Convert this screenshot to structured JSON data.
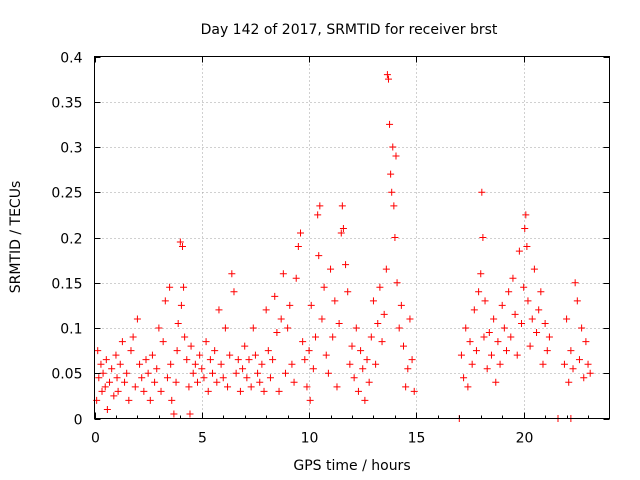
{
  "chart_data": {
    "type": "scatter",
    "title": "Day 142 of 2017, SRMTID for receiver brst",
    "xlabel": "GPS time / hours",
    "ylabel": "SRMTID / TECUs",
    "xlim": [
      0,
      24
    ],
    "ylim": [
      0,
      0.4
    ],
    "x_ticks": [
      0,
      5,
      10,
      15,
      20
    ],
    "x_tick_labels": [
      "0",
      "5",
      "10",
      "15",
      "20"
    ],
    "y_ticks": [
      0,
      0.05,
      0.1,
      0.15,
      0.2,
      0.25,
      0.3,
      0.35,
      0.4
    ],
    "y_tick_labels": [
      "0",
      "0.05",
      "0.1",
      "0.15",
      "0.2",
      "0.25",
      "0.3",
      "0.35",
      "0.4"
    ],
    "grid": true,
    "marker": "+",
    "marker_color": "#ff0000",
    "series": [
      {
        "name": "SRMTID",
        "points": [
          [
            0.1,
            0.02
          ],
          [
            0.15,
            0.075
          ],
          [
            0.2,
            0.045
          ],
          [
            0.3,
            0.06
          ],
          [
            0.35,
            0.03
          ],
          [
            0.4,
            0.05
          ],
          [
            0.5,
            0.035
          ],
          [
            0.55,
            0.065
          ],
          [
            0.6,
            0.01
          ],
          [
            0.7,
            0.04
          ],
          [
            0.8,
            0.055
          ],
          [
            0.9,
            0.025
          ],
          [
            1.0,
            0.07
          ],
          [
            1.05,
            0.045
          ],
          [
            1.1,
            0.03
          ],
          [
            1.2,
            0.06
          ],
          [
            1.3,
            0.085
          ],
          [
            1.4,
            0.04
          ],
          [
            1.5,
            0.05
          ],
          [
            1.6,
            0.02
          ],
          [
            1.7,
            0.075
          ],
          [
            1.8,
            0.09
          ],
          [
            1.9,
            0.035
          ],
          [
            2.0,
            0.11
          ],
          [
            2.1,
            0.06
          ],
          [
            2.2,
            0.045
          ],
          [
            2.3,
            0.03
          ],
          [
            2.4,
            0.065
          ],
          [
            2.5,
            0.05
          ],
          [
            2.6,
            0.02
          ],
          [
            2.7,
            0.07
          ],
          [
            2.8,
            0.04
          ],
          [
            2.9,
            0.055
          ],
          [
            3.0,
            0.1
          ],
          [
            3.1,
            0.03
          ],
          [
            3.2,
            0.085
          ],
          [
            3.3,
            0.13
          ],
          [
            3.4,
            0.045
          ],
          [
            3.5,
            0.145
          ],
          [
            3.55,
            0.06
          ],
          [
            3.6,
            0.02
          ],
          [
            3.7,
            0.005
          ],
          [
            3.8,
            0.04
          ],
          [
            3.85,
            0.075
          ],
          [
            3.9,
            0.105
          ],
          [
            4.0,
            0.195
          ],
          [
            4.05,
            0.125
          ],
          [
            4.1,
            0.19
          ],
          [
            4.15,
            0.145
          ],
          [
            4.2,
            0.09
          ],
          [
            4.3,
            0.065
          ],
          [
            4.4,
            0.035
          ],
          [
            4.45,
            0.005
          ],
          [
            4.5,
            0.08
          ],
          [
            4.6,
            0.05
          ],
          [
            4.7,
            0.06
          ],
          [
            4.8,
            0.04
          ],
          [
            4.9,
            0.07
          ],
          [
            5.0,
            0.055
          ],
          [
            5.1,
            0.045
          ],
          [
            5.2,
            0.085
          ],
          [
            5.3,
            0.03
          ],
          [
            5.4,
            0.065
          ],
          [
            5.5,
            0.05
          ],
          [
            5.6,
            0.075
          ],
          [
            5.7,
            0.04
          ],
          [
            5.8,
            0.12
          ],
          [
            5.9,
            0.06
          ],
          [
            6.0,
            0.045
          ],
          [
            6.1,
            0.1
          ],
          [
            6.2,
            0.035
          ],
          [
            6.3,
            0.07
          ],
          [
            6.4,
            0.16
          ],
          [
            6.5,
            0.14
          ],
          [
            6.6,
            0.05
          ],
          [
            6.7,
            0.065
          ],
          [
            6.8,
            0.03
          ],
          [
            6.9,
            0.055
          ],
          [
            7.0,
            0.08
          ],
          [
            7.1,
            0.045
          ],
          [
            7.2,
            0.065
          ],
          [
            7.3,
            0.035
          ],
          [
            7.4,
            0.1
          ],
          [
            7.5,
            0.07
          ],
          [
            7.6,
            0.05
          ],
          [
            7.7,
            0.04
          ],
          [
            7.8,
            0.06
          ],
          [
            7.9,
            0.03
          ],
          [
            8.0,
            0.12
          ],
          [
            8.1,
            0.075
          ],
          [
            8.2,
            0.045
          ],
          [
            8.3,
            0.065
          ],
          [
            8.4,
            0.135
          ],
          [
            8.5,
            0.095
          ],
          [
            8.6,
            0.03
          ],
          [
            8.7,
            0.11
          ],
          [
            8.8,
            0.16
          ],
          [
            8.9,
            0.05
          ],
          [
            9.0,
            0.1
          ],
          [
            9.1,
            0.125
          ],
          [
            9.2,
            0.06
          ],
          [
            9.3,
            0.04
          ],
          [
            9.4,
            0.155
          ],
          [
            9.5,
            0.19
          ],
          [
            9.6,
            0.205
          ],
          [
            9.7,
            0.085
          ],
          [
            9.8,
            0.065
          ],
          [
            9.9,
            0.035
          ],
          [
            10.0,
            0.075
          ],
          [
            10.05,
            0.02
          ],
          [
            10.1,
            0.125
          ],
          [
            10.2,
            0.055
          ],
          [
            10.3,
            0.09
          ],
          [
            10.4,
            0.225
          ],
          [
            10.45,
            0.18
          ],
          [
            10.5,
            0.235
          ],
          [
            10.6,
            0.11
          ],
          [
            10.7,
            0.145
          ],
          [
            10.8,
            0.07
          ],
          [
            10.9,
            0.05
          ],
          [
            11.0,
            0.165
          ],
          [
            11.1,
            0.09
          ],
          [
            11.2,
            0.13
          ],
          [
            11.3,
            0.035
          ],
          [
            11.4,
            0.105
          ],
          [
            11.5,
            0.205
          ],
          [
            11.55,
            0.235
          ],
          [
            11.6,
            0.21
          ],
          [
            11.7,
            0.17
          ],
          [
            11.8,
            0.14
          ],
          [
            11.9,
            0.06
          ],
          [
            12.0,
            0.08
          ],
          [
            12.1,
            0.045
          ],
          [
            12.2,
            0.1
          ],
          [
            12.3,
            0.03
          ],
          [
            12.4,
            0.075
          ],
          [
            12.5,
            0.055
          ],
          [
            12.6,
            0.02
          ],
          [
            12.7,
            0.065
          ],
          [
            12.8,
            0.04
          ],
          [
            12.9,
            0.09
          ],
          [
            13.0,
            0.13
          ],
          [
            13.1,
            0.06
          ],
          [
            13.2,
            0.105
          ],
          [
            13.3,
            0.145
          ],
          [
            13.4,
            0.085
          ],
          [
            13.5,
            0.115
          ],
          [
            13.6,
            0.165
          ],
          [
            13.65,
            0.38
          ],
          [
            13.7,
            0.375
          ],
          [
            13.75,
            0.325
          ],
          [
            13.8,
            0.27
          ],
          [
            13.85,
            0.25
          ],
          [
            13.9,
            0.3
          ],
          [
            13.95,
            0.235
          ],
          [
            14.0,
            0.2
          ],
          [
            14.05,
            0.29
          ],
          [
            14.1,
            0.15
          ],
          [
            14.2,
            0.1
          ],
          [
            14.3,
            0.125
          ],
          [
            14.4,
            0.08
          ],
          [
            14.5,
            0.035
          ],
          [
            14.6,
            0.055
          ],
          [
            14.7,
            0.11
          ],
          [
            14.8,
            0.065
          ],
          [
            14.9,
            0.03
          ],
          [
            17.1,
            0.07
          ],
          [
            17.2,
            0.045
          ],
          [
            17.3,
            0.1
          ],
          [
            17.4,
            0.035
          ],
          [
            17.5,
            0.085
          ],
          [
            17.6,
            0.06
          ],
          [
            17.7,
            0.12
          ],
          [
            17.8,
            0.075
          ],
          [
            17.9,
            0.14
          ],
          [
            18.0,
            0.16
          ],
          [
            18.05,
            0.25
          ],
          [
            18.1,
            0.2
          ],
          [
            18.15,
            0.09
          ],
          [
            18.2,
            0.13
          ],
          [
            18.3,
            0.055
          ],
          [
            18.4,
            0.095
          ],
          [
            18.5,
            0.07
          ],
          [
            18.6,
            0.11
          ],
          [
            18.7,
            0.04
          ],
          [
            18.8,
            0.085
          ],
          [
            18.9,
            0.06
          ],
          [
            19.0,
            0.125
          ],
          [
            19.1,
            0.1
          ],
          [
            19.2,
            0.075
          ],
          [
            19.3,
            0.14
          ],
          [
            19.4,
            0.09
          ],
          [
            19.5,
            0.155
          ],
          [
            19.6,
            0.115
          ],
          [
            19.7,
            0.07
          ],
          [
            19.8,
            0.185
          ],
          [
            19.9,
            0.105
          ],
          [
            20.0,
            0.145
          ],
          [
            20.05,
            0.21
          ],
          [
            20.1,
            0.225
          ],
          [
            20.15,
            0.19
          ],
          [
            20.2,
            0.13
          ],
          [
            20.3,
            0.08
          ],
          [
            20.4,
            0.11
          ],
          [
            20.5,
            0.165
          ],
          [
            20.6,
            0.095
          ],
          [
            20.7,
            0.12
          ],
          [
            20.8,
            0.14
          ],
          [
            20.9,
            0.06
          ],
          [
            21.0,
            0.105
          ],
          [
            21.1,
            0.075
          ],
          [
            21.2,
            0.09
          ],
          [
            21.9,
            0.06
          ],
          [
            22.0,
            0.11
          ],
          [
            22.1,
            0.04
          ],
          [
            22.2,
            0.075
          ],
          [
            22.3,
            0.055
          ],
          [
            22.4,
            0.15
          ],
          [
            22.5,
            0.13
          ],
          [
            22.6,
            0.065
          ],
          [
            22.7,
            0.1
          ],
          [
            22.8,
            0.045
          ],
          [
            22.9,
            0.085
          ],
          [
            23.0,
            0.06
          ],
          [
            23.1,
            0.05
          ],
          [
            17.0,
            0.0
          ],
          [
            21.6,
            0.0
          ],
          [
            22.2,
            0.0
          ]
        ]
      }
    ]
  }
}
